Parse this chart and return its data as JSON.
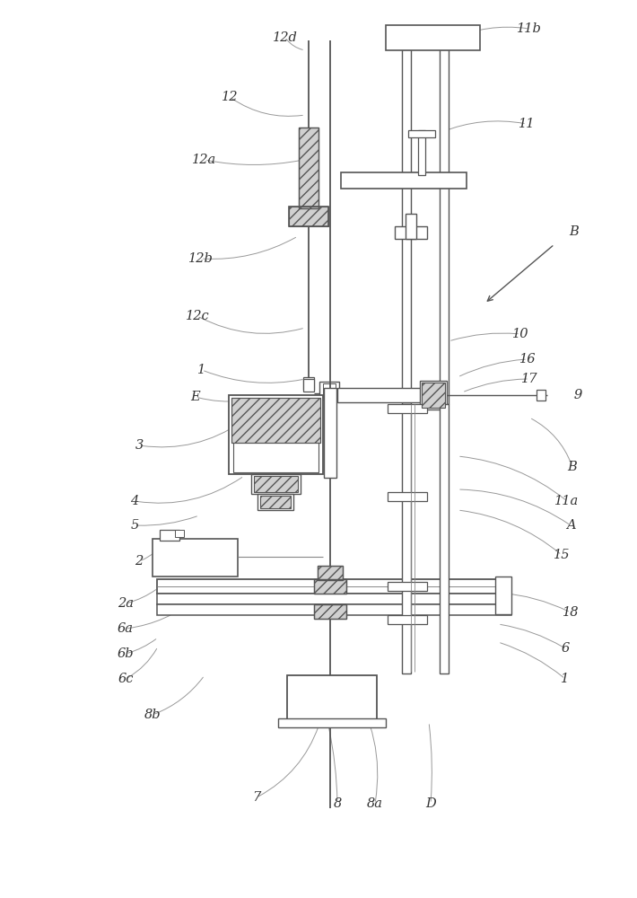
{
  "bg": "#ffffff",
  "lc": "#555555",
  "lch": "#999999",
  "hfc": "#d0d0d0",
  "lfs": 10.5,
  "lcl": "#333333",
  "figsize": [
    7.1,
    10.0
  ],
  "dpi": 100,
  "labels": [
    [
      "12d",
      318,
      42
    ],
    [
      "11b",
      590,
      32
    ],
    [
      "12",
      256,
      108
    ],
    [
      "11",
      587,
      138
    ],
    [
      "12a",
      228,
      178
    ],
    [
      "B",
      640,
      258
    ],
    [
      "12b",
      224,
      288
    ],
    [
      "12c",
      220,
      352
    ],
    [
      "10",
      580,
      372
    ],
    [
      "16",
      588,
      400
    ],
    [
      "1",
      225,
      412
    ],
    [
      "17",
      590,
      422
    ],
    [
      "E",
      218,
      442
    ],
    [
      "9",
      644,
      440
    ],
    [
      "3",
      155,
      496
    ],
    [
      "B",
      638,
      520
    ],
    [
      "4",
      150,
      558
    ],
    [
      "11a",
      632,
      558
    ],
    [
      "5",
      150,
      585
    ],
    [
      "A",
      636,
      585
    ],
    [
      "2",
      155,
      625
    ],
    [
      "15",
      626,
      618
    ],
    [
      "2a",
      140,
      672
    ],
    [
      "6a",
      140,
      700
    ],
    [
      "18",
      636,
      682
    ],
    [
      "6b",
      140,
      728
    ],
    [
      "6",
      630,
      722
    ],
    [
      "6c",
      140,
      756
    ],
    [
      "1",
      630,
      756
    ],
    [
      "8b",
      170,
      796
    ],
    [
      "7",
      286,
      888
    ],
    [
      "8",
      376,
      895
    ],
    [
      "8a",
      418,
      895
    ],
    [
      "D",
      480,
      895
    ]
  ],
  "leaders": [
    [
      318,
      42,
      340,
      56,
      0.2
    ],
    [
      590,
      32,
      500,
      45,
      0.15
    ],
    [
      256,
      108,
      340,
      128,
      0.2
    ],
    [
      587,
      138,
      490,
      148,
      0.15
    ],
    [
      228,
      178,
      338,
      178,
      0.1
    ],
    [
      224,
      288,
      332,
      263,
      0.15
    ],
    [
      220,
      352,
      340,
      365,
      0.2
    ],
    [
      580,
      372,
      500,
      380,
      0.1
    ],
    [
      588,
      400,
      510,
      420,
      0.1
    ],
    [
      225,
      412,
      340,
      422,
      0.15
    ],
    [
      590,
      422,
      515,
      437,
      0.1
    ],
    [
      218,
      442,
      272,
      446,
      0.1
    ],
    [
      644,
      440,
      638,
      444,
      0.05
    ],
    [
      155,
      496,
      272,
      468,
      0.2
    ],
    [
      638,
      520,
      590,
      465,
      0.2
    ],
    [
      150,
      558,
      272,
      530,
      0.2
    ],
    [
      632,
      558,
      510,
      508,
      0.15
    ],
    [
      150,
      585,
      222,
      574,
      0.1
    ],
    [
      636,
      585,
      510,
      545,
      0.15
    ],
    [
      155,
      625,
      176,
      612,
      0.1
    ],
    [
      626,
      618,
      510,
      568,
      0.15
    ],
    [
      140,
      672,
      176,
      655,
      0.1
    ],
    [
      140,
      700,
      220,
      665,
      0.15
    ],
    [
      636,
      682,
      555,
      660,
      0.1
    ],
    [
      140,
      728,
      176,
      710,
      0.1
    ],
    [
      630,
      722,
      555,
      695,
      0.1
    ],
    [
      140,
      756,
      176,
      720,
      0.15
    ],
    [
      630,
      756,
      555,
      715,
      0.1
    ],
    [
      170,
      796,
      228,
      752,
      0.15
    ],
    [
      286,
      888,
      356,
      806,
      0.2
    ],
    [
      376,
      895,
      366,
      808,
      0.05
    ],
    [
      418,
      895,
      388,
      758,
      0.2
    ],
    [
      480,
      895,
      478,
      804,
      0.05
    ]
  ]
}
